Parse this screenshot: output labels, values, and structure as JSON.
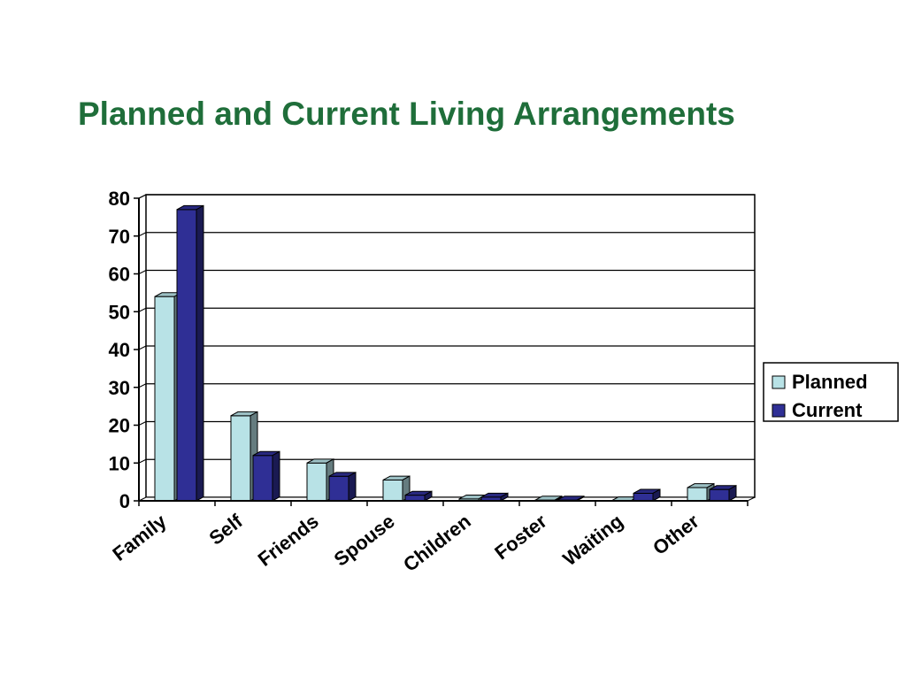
{
  "slide": {
    "title": "Planned and Current Living Arrangements"
  },
  "colors": {
    "title": "#1f6e3a",
    "planned": "#b8e2e6",
    "current": "#2f2f95"
  },
  "chart_data": {
    "type": "bar",
    "categories": [
      "Family",
      "Self",
      "Friends",
      "Spouse",
      "Children",
      "Foster",
      "Waiting",
      "Other"
    ],
    "series": [
      {
        "name": "Planned",
        "values": [
          54,
          22.5,
          10,
          5.5,
          0.5,
          0.2,
          0,
          3.5
        ]
      },
      {
        "name": "Current",
        "values": [
          77,
          12,
          6.5,
          1.5,
          1,
          0.2,
          2,
          3
        ]
      }
    ],
    "yticks": [
      0,
      10,
      20,
      30,
      40,
      50,
      60,
      70,
      80
    ],
    "ylim": [
      0,
      80
    ],
    "grid": true,
    "legend": "right",
    "xlabel": "",
    "ylabel": ""
  }
}
